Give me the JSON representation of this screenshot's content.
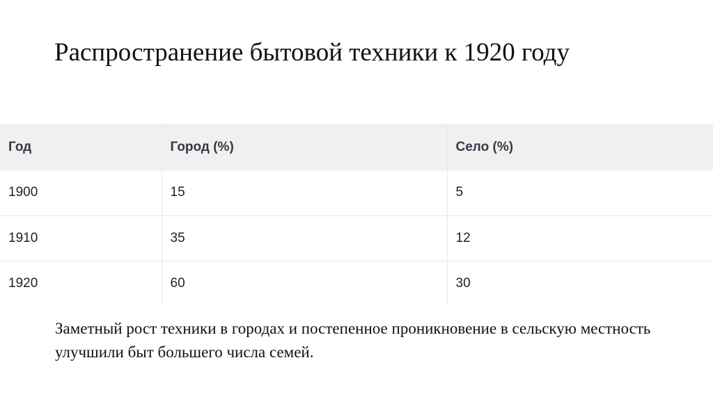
{
  "slide": {
    "title": "Распространение бытовой техники к 1920 году",
    "footer": "Заметный рост техники в городах и постепенное проникновение в сельскую местность улучшили быт большего числа семей."
  },
  "table": {
    "headers": [
      "Год",
      "Город (%)",
      "Село (%)"
    ],
    "rows": [
      [
        "1900",
        "15",
        "5"
      ],
      [
        "1910",
        "35",
        "12"
      ],
      [
        "1920",
        "60",
        "30"
      ]
    ]
  }
}
